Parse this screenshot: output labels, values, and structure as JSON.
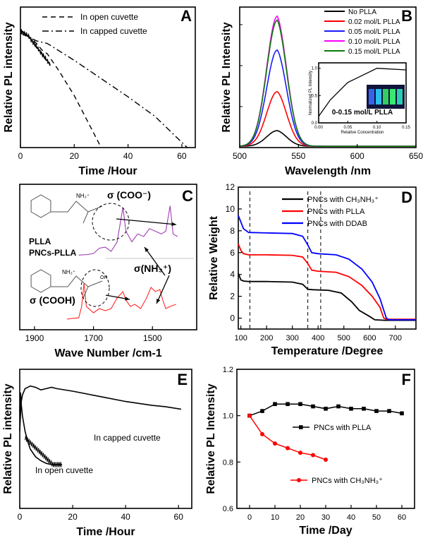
{
  "chart_data": [
    {
      "panel": "A",
      "type": "line",
      "xlabel": "Time /Hour",
      "ylabel": "Relative PL intensity",
      "xlim": [
        0,
        65
      ],
      "ylim": [
        0,
        1.08
      ],
      "x_ticks": [
        0,
        20,
        40,
        60
      ],
      "y_ticks": [],
      "legend_position": "top-right",
      "series": [
        {
          "name": "In open cuvette",
          "dash": "dashed",
          "points": [
            [
              0,
              0.9
            ],
            [
              2,
              0.87
            ],
            [
              4,
              0.84
            ],
            [
              6,
              0.8
            ],
            [
              8,
              0.75
            ],
            [
              10,
              0.72
            ],
            [
              14,
              0.6
            ],
            [
              20,
              0.4
            ],
            [
              25,
              0.2
            ],
            [
              30,
              0.0
            ]
          ]
        },
        {
          "name": "In capped cuvette",
          "dash": "dashdot",
          "points": [
            [
              0,
              0.88
            ],
            [
              3,
              0.85
            ],
            [
              6,
              0.82
            ],
            [
              10,
              0.8
            ],
            [
              20,
              0.67
            ],
            [
              30,
              0.53
            ],
            [
              40,
              0.39
            ],
            [
              50,
              0.24
            ],
            [
              62,
              0.0
            ]
          ]
        }
      ]
    },
    {
      "panel": "B",
      "type": "line",
      "xlabel": "Wavelength /nm",
      "ylabel": "Relative PL Intensity",
      "xlim": [
        500,
        650
      ],
      "ylim": [
        0,
        1.08
      ],
      "x_ticks": [
        500,
        550,
        600,
        650
      ],
      "y_ticks": [],
      "legend_position": "top-right",
      "peak_nm": 532,
      "peak_sigma": 9,
      "series": [
        {
          "name": "No PLLA",
          "color": "#000000",
          "peak": 0.12
        },
        {
          "name": "0.02 mol/L PLLA",
          "color": "#ff0000",
          "peak": 0.42
        },
        {
          "name": "0.05 mol/L PLLA",
          "color": "#1a1aff",
          "peak": 0.74
        },
        {
          "name": "0.10 mol/L PLLA",
          "color": "#ff00ff",
          "peak": 1.0
        },
        {
          "name": "0.15 mol/L PLLA",
          "color": "#0a7a0a",
          "peak": 0.97
        }
      ],
      "inset": {
        "type": "line",
        "xlabel": "Relative Concentration",
        "ylabel": "Normalized PL Intensity",
        "annotation": "0-0.15 mol/L PLLA",
        "xlim": [
          0,
          0.15
        ],
        "ylim": [
          0,
          1.1
        ],
        "x_ticks": [
          "0.00",
          "0.05",
          "0.10",
          "0.15"
        ],
        "y_ticks": [
          "0.0",
          "0.5",
          "1.0"
        ],
        "x": [
          0,
          0.02,
          0.05,
          0.1,
          0.15
        ],
        "y": [
          0.12,
          0.42,
          0.74,
          1.0,
          0.97
        ]
      }
    },
    {
      "panel": "C",
      "type": "line",
      "xlabel": "Wave Number /cm-1",
      "ylabel": "",
      "xlim": [
        1950,
        1350
      ],
      "x_ticks": [
        "1900",
        "1700",
        "1500"
      ],
      "labels": {
        "coo": "σ (COO⁻)",
        "nh3": "σ(NH₃⁺)",
        "cooh": "σ (COOH)",
        "plla": "PLLA",
        "pncs": "PNCs-PLLA",
        "nh3_top": "NH₃⁺",
        "nh3_bottom": "NH₃⁺",
        "oh": "OH"
      },
      "series": [
        {
          "name": "PNCs-PLLA",
          "color": "#a03cb4",
          "baseline_offset": 0.0,
          "points": [
            [
              1750,
              0.05
            ],
            [
              1720,
              0.06
            ],
            [
              1700,
              0.08
            ],
            [
              1680,
              0.18
            ],
            [
              1660,
              0.2
            ],
            [
              1640,
              0.12
            ],
            [
              1620,
              0.3
            ],
            [
              1600,
              0.95
            ],
            [
              1590,
              0.5
            ],
            [
              1570,
              0.3
            ],
            [
              1550,
              0.45
            ],
            [
              1530,
              0.4
            ],
            [
              1510,
              0.55
            ],
            [
              1490,
              0.5
            ],
            [
              1470,
              0.45
            ],
            [
              1455,
              0.5
            ],
            [
              1440,
              0.98
            ],
            [
              1430,
              0.45
            ],
            [
              1415,
              0.4
            ]
          ]
        },
        {
          "name": "PLLA",
          "color": "#ff2a2a",
          "baseline_offset": 0.0,
          "points": [
            [
              1790,
              0.05
            ],
            [
              1770,
              0.07
            ],
            [
              1750,
              0.08
            ],
            [
              1740,
              0.35
            ],
            [
              1732,
              0.9
            ],
            [
              1724,
              0.35
            ],
            [
              1700,
              0.2
            ],
            [
              1680,
              0.3
            ],
            [
              1660,
              0.25
            ],
            [
              1640,
              0.3
            ],
            [
              1620,
              0.55
            ],
            [
              1600,
              0.7
            ],
            [
              1590,
              0.5
            ],
            [
              1575,
              0.35
            ],
            [
              1560,
              0.4
            ],
            [
              1540,
              0.3
            ],
            [
              1520,
              0.55
            ],
            [
              1505,
              0.8
            ],
            [
              1490,
              0.7
            ],
            [
              1475,
              0.75
            ],
            [
              1465,
              0.5
            ],
            [
              1455,
              0.3
            ],
            [
              1440,
              0.35
            ],
            [
              1420,
              0.4
            ]
          ]
        }
      ]
    },
    {
      "panel": "D",
      "type": "line",
      "xlabel": "Temperature /Degree",
      "ylabel": "Relative Weight",
      "xlim": [
        90,
        780
      ],
      "ylim": [
        -1,
        12
      ],
      "x_ticks": [
        100,
        200,
        300,
        400,
        500,
        600,
        700
      ],
      "y_ticks": [
        0,
        2,
        4,
        6,
        8,
        10,
        12
      ],
      "vlines": [
        135,
        360,
        410
      ],
      "legend_position": "top-right",
      "series": [
        {
          "name": "PNCs with CH₃NH₃⁺",
          "color": "#000000",
          "points": [
            [
              90,
              4.1
            ],
            [
              100,
              3.5
            ],
            [
              110,
              3.4
            ],
            [
              130,
              3.35
            ],
            [
              200,
              3.35
            ],
            [
              300,
              3.3
            ],
            [
              340,
              3.1
            ],
            [
              360,
              2.65
            ],
            [
              380,
              2.6
            ],
            [
              440,
              2.55
            ],
            [
              490,
              2.3
            ],
            [
              530,
              1.5
            ],
            [
              560,
              0.7
            ],
            [
              600,
              0.15
            ],
            [
              620,
              -0.15
            ],
            [
              660,
              -0.2
            ],
            [
              780,
              -0.2
            ]
          ]
        },
        {
          "name": "PNCs with PLLA",
          "color": "#ff0000",
          "points": [
            [
              90,
              6.8
            ],
            [
              100,
              6.2
            ],
            [
              110,
              5.9
            ],
            [
              130,
              5.8
            ],
            [
              200,
              5.8
            ],
            [
              300,
              5.75
            ],
            [
              340,
              5.6
            ],
            [
              360,
              5.0
            ],
            [
              375,
              4.4
            ],
            [
              400,
              4.3
            ],
            [
              470,
              4.2
            ],
            [
              520,
              3.8
            ],
            [
              570,
              3.0
            ],
            [
              610,
              2.0
            ],
            [
              640,
              1.0
            ],
            [
              655,
              0.0
            ],
            [
              665,
              -0.1
            ],
            [
              780,
              -0.1
            ]
          ]
        },
        {
          "name": "PNCs with DDAB",
          "color": "#0000ff",
          "points": [
            [
              90,
              9.4
            ],
            [
              100,
              8.8
            ],
            [
              110,
              8.2
            ],
            [
              130,
              7.85
            ],
            [
              200,
              7.8
            ],
            [
              300,
              7.75
            ],
            [
              340,
              7.5
            ],
            [
              360,
              6.7
            ],
            [
              375,
              6.0
            ],
            [
              400,
              5.9
            ],
            [
              470,
              5.8
            ],
            [
              520,
              5.4
            ],
            [
              570,
              4.5
            ],
            [
              610,
              3.3
            ],
            [
              640,
              1.8
            ],
            [
              665,
              0.0
            ],
            [
              675,
              -0.15
            ],
            [
              780,
              -0.15
            ]
          ]
        }
      ]
    },
    {
      "panel": "E",
      "type": "line",
      "xlabel": "Time /Hour",
      "ylabel": "Relative PL intensity",
      "xlim": [
        0,
        65
      ],
      "ylim": [
        0,
        1.08
      ],
      "x_ticks": [
        0,
        20,
        40,
        60
      ],
      "y_ticks": [],
      "annotations": [
        "In capped cuvette",
        "In open cuvette"
      ],
      "series": [
        {
          "name": "In capped cuvette",
          "color": "#000000",
          "points": [
            [
              0,
              0.6
            ],
            [
              0.5,
              0.82
            ],
            [
              1,
              0.88
            ],
            [
              2,
              0.93
            ],
            [
              4,
              0.95
            ],
            [
              6,
              0.94
            ],
            [
              8,
              0.92
            ],
            [
              10,
              0.93
            ],
            [
              12,
              0.94
            ],
            [
              14,
              0.93
            ],
            [
              20,
              0.91
            ],
            [
              30,
              0.87
            ],
            [
              40,
              0.83
            ],
            [
              50,
              0.8
            ],
            [
              55,
              0.79
            ],
            [
              61,
              0.77
            ]
          ]
        },
        {
          "name": "In open cuvette",
          "color": "#000000",
          "points": [
            [
              0,
              0.75
            ],
            [
              0.3,
              0.9
            ],
            [
              0.6,
              0.8
            ],
            [
              1,
              0.72
            ],
            [
              2,
              0.6
            ],
            [
              3,
              0.52
            ],
            [
              4,
              0.46
            ],
            [
              6,
              0.4
            ],
            [
              8,
              0.37
            ],
            [
              10,
              0.35
            ],
            [
              12,
              0.34
            ],
            [
              16,
              0.34
            ]
          ]
        }
      ]
    },
    {
      "panel": "F",
      "type": "line",
      "xlabel": "Time /Day",
      "ylabel": "Relative PL Intensity",
      "xlim": [
        -5,
        65
      ],
      "ylim": [
        0.6,
        1.2
      ],
      "x_ticks": [
        0,
        10,
        20,
        30,
        40,
        50,
        60
      ],
      "y_ticks": [
        "0.6",
        "0.8",
        "1.0",
        "1.2"
      ],
      "series": [
        {
          "name": "PNCs with PLLA",
          "color": "#000000",
          "marker": "square",
          "x": [
            0,
            5,
            10,
            15,
            20,
            25,
            30,
            35,
            40,
            45,
            50,
            55,
            60
          ],
          "y": [
            1.0,
            1.02,
            1.05,
            1.05,
            1.05,
            1.04,
            1.03,
            1.04,
            1.03,
            1.03,
            1.02,
            1.02,
            1.01
          ]
        },
        {
          "name": "PNCs with CH₃NH₃⁺",
          "color": "#ff0000",
          "marker": "circle",
          "x": [
            0,
            5,
            10,
            15,
            20,
            25,
            30
          ],
          "y": [
            1.0,
            0.92,
            0.88,
            0.86,
            0.84,
            0.83,
            0.81
          ]
        }
      ]
    }
  ]
}
